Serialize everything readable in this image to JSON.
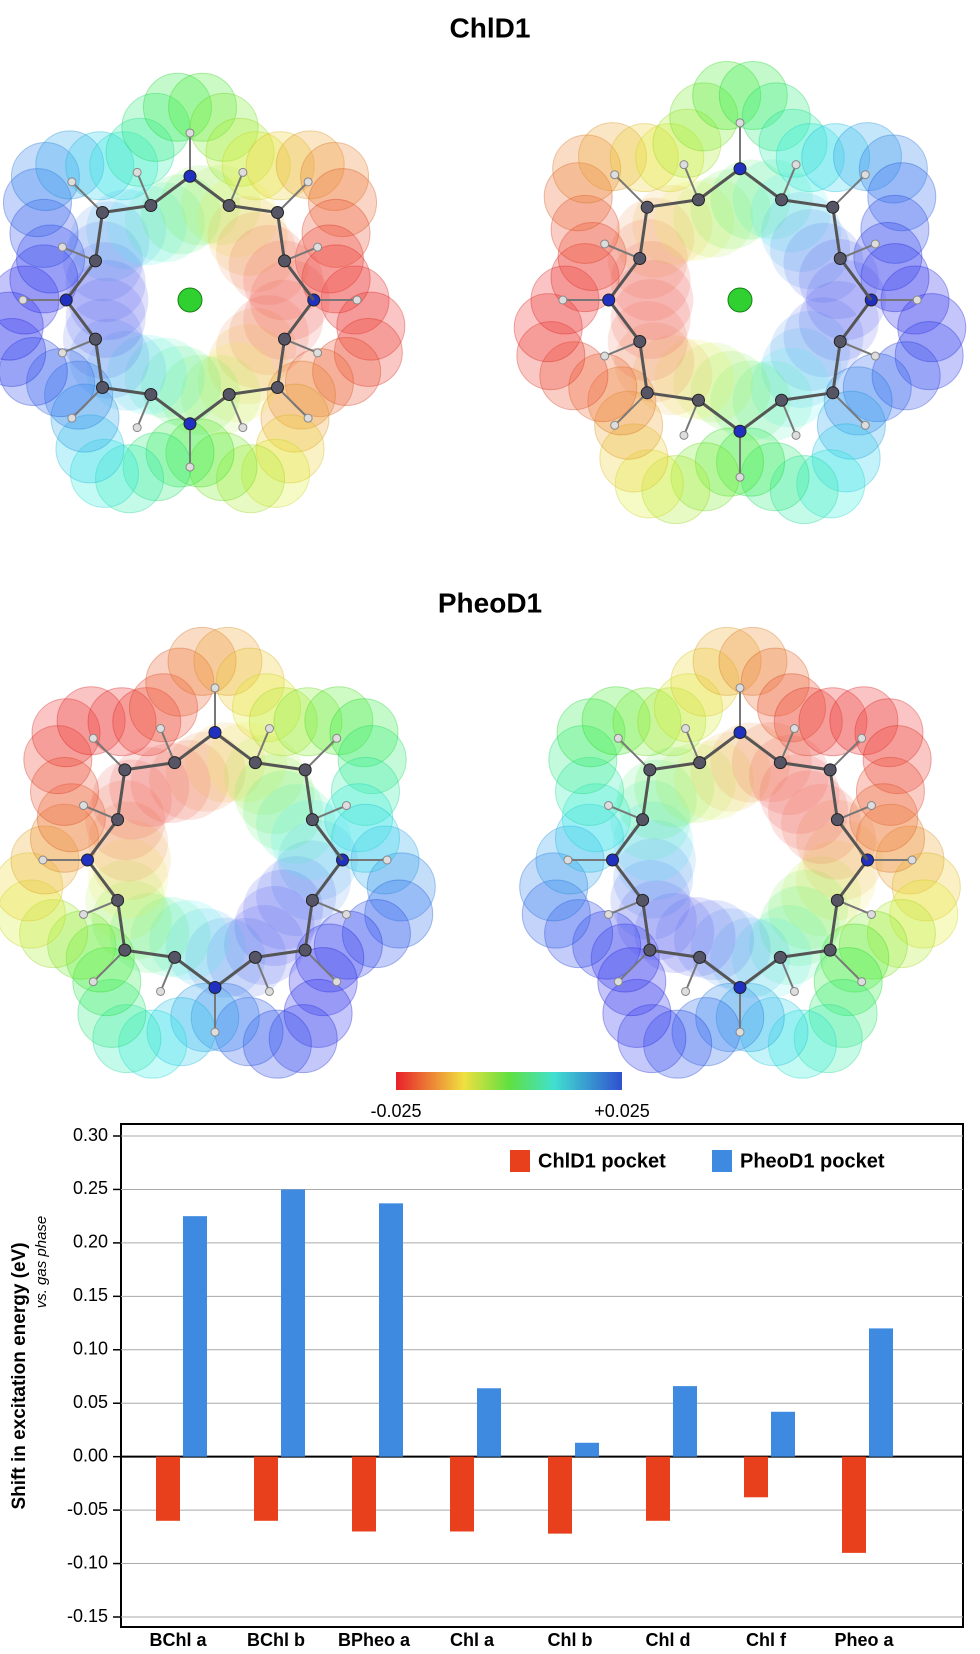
{
  "titles": [
    "ChlD1",
    "PheoD1"
  ],
  "colorbar": {
    "ticks": [
      -0.025,
      {
        "value": 0.025,
        "label": "+0.025"
      }
    ]
  },
  "chart_data": {
    "type": "bar",
    "y_label": "Shift in excitation energy (eV)",
    "y_sublabel": "vs. gas phase",
    "categories": [
      "BChl a",
      "BChl b",
      "BPheo a",
      "Chl a",
      "Chl b",
      "Chl d",
      "Chl f",
      "Pheo a"
    ],
    "series": [
      {
        "name": "ChlD1 pocket",
        "color": "#e8401c",
        "values": [
          -0.06,
          -0.06,
          -0.07,
          -0.07,
          -0.072,
          -0.06,
          -0.038,
          -0.09
        ]
      },
      {
        "name": "PheoD1 pocket",
        "color": "#3d8ae0",
        "values": [
          0.225,
          0.25,
          0.237,
          0.064,
          0.013,
          0.066,
          0.042,
          0.12
        ]
      }
    ],
    "ylim": [
      -0.15,
      0.3
    ],
    "yticks": [
      {
        "value": 0.3,
        "label": "0.30"
      },
      0.25,
      {
        "value": 0.2,
        "label": "0.20"
      },
      0.15,
      {
        "value": 0.1,
        "label": "0.10"
      },
      0.05,
      {
        "value": 0,
        "label": "0.00"
      },
      -0.05,
      {
        "value": -0.1,
        "label": "-0.10"
      },
      -0.15
    ],
    "grid": true,
    "legend": "top-right"
  }
}
